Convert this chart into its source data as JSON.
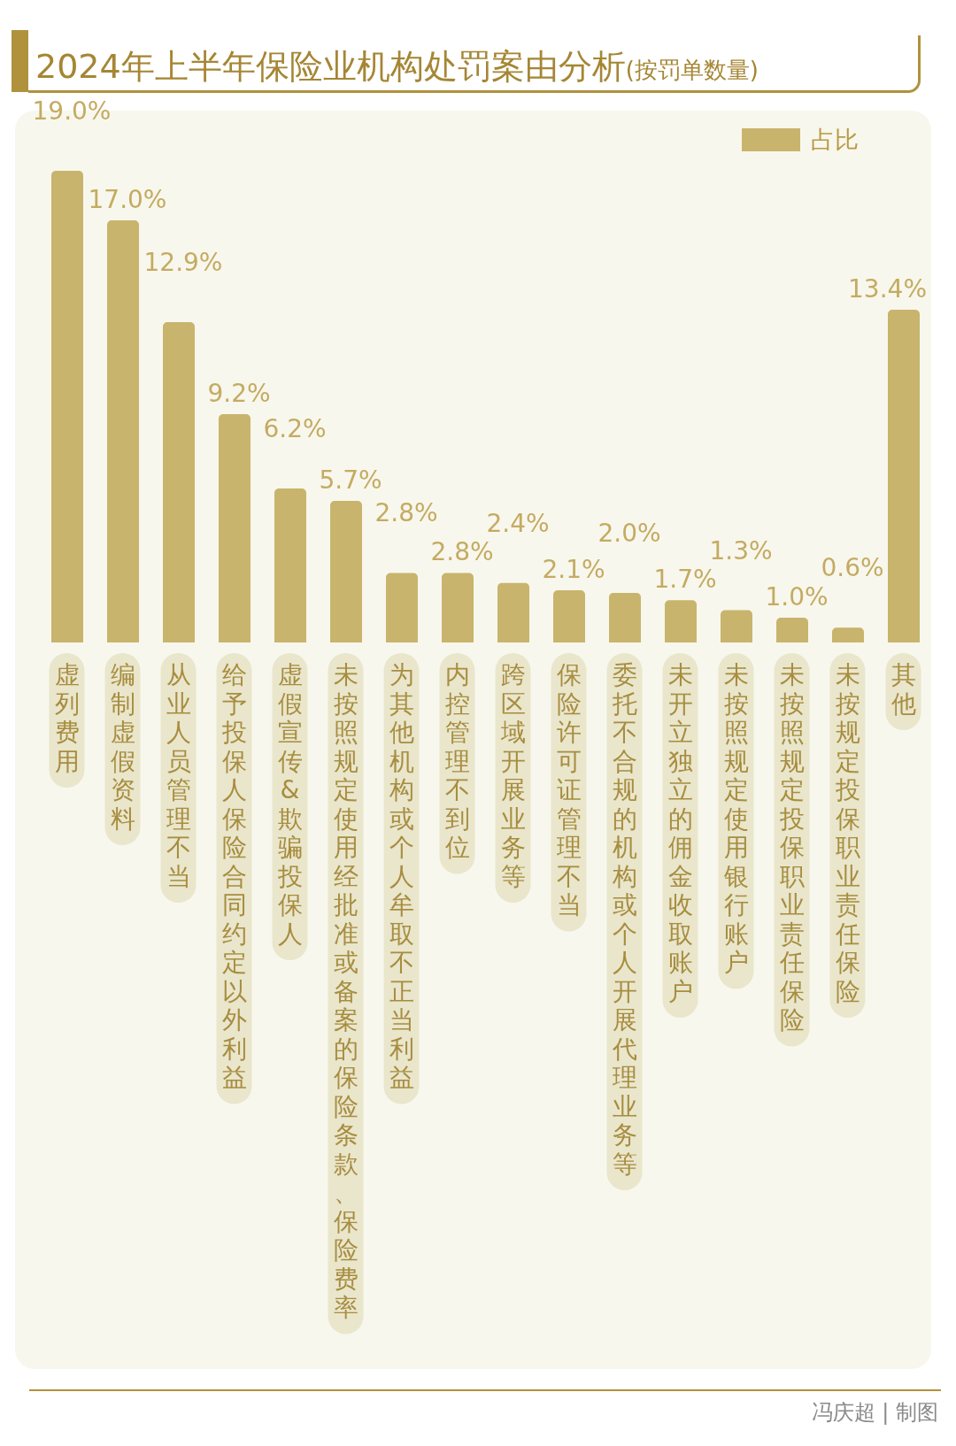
{
  "chart_data": {
    "type": "bar",
    "title": "2024年上半年保险业机构处罚案由分析",
    "subtitle": "(按罚单数量)",
    "categories": [
      "虚列费用",
      "编制虚假资料",
      "从业人员管理不当",
      "给予投保人保险合同约定以外利益",
      "虚假宣传&欺骗投保人",
      "未按照规定使用经批准或备案的保险条款、保险费率",
      "为其他机构或个人牟取不正当利益",
      "内控管理不到位",
      "跨区域开展业务等",
      "保险许可证管理不当",
      "委托不合规的机构或个人开展代理业务等",
      "未开立独立的佣金收取账户",
      "未按照规定使用银行账户",
      "未按照规定投保职业责任保险",
      "未按规定投保职业责任保险",
      "其他"
    ],
    "series": [
      {
        "name": "占比",
        "color": "#c8b46c",
        "values": [
          19.0,
          17.0,
          12.9,
          9.2,
          6.2,
          5.7,
          2.8,
          2.8,
          2.4,
          2.1,
          2.0,
          1.7,
          1.3,
          1.0,
          0.6,
          13.4
        ],
        "value_labels": [
          "19.0%",
          "17.0%",
          "12.9%",
          "9.2%",
          "6.2%",
          "5.7%",
          "2.8%",
          "2.8%",
          "2.4%",
          "2.1%",
          "2.0%",
          "1.7%",
          "1.3%",
          "1.0%",
          "0.6%",
          "13.4%"
        ]
      }
    ],
    "legend": "top right",
    "grid": false,
    "annotations": [
      "冯庆超 | 制图"
    ]
  }
}
